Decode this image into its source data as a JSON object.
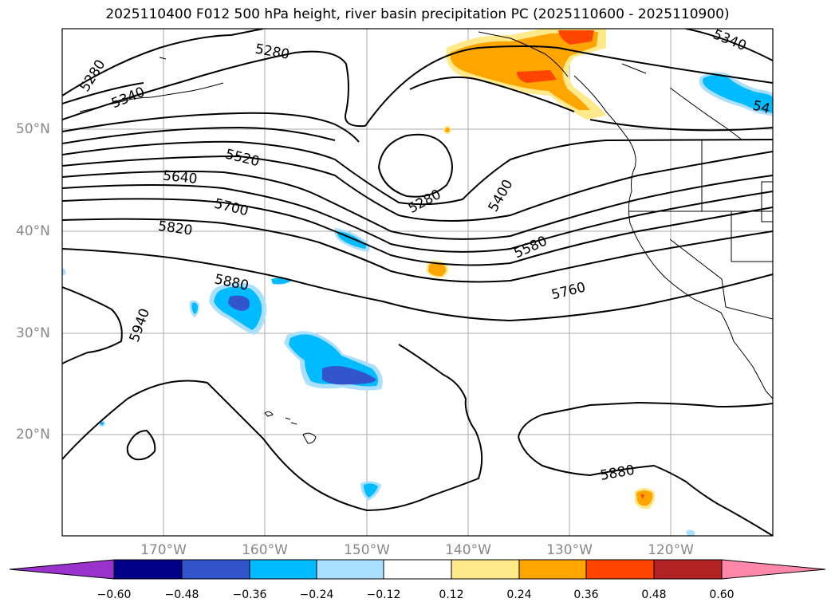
{
  "title": "2025110400 F012 500 hPa height, river basin precipitation PC (2025110600 - 2025110900)",
  "lat_labels": [
    "50°N",
    "40°N",
    "30°N",
    "20°N"
  ],
  "lon_labels": [
    "170°W",
    "160°W",
    "150°W",
    "140°W",
    "130°W",
    "120°W"
  ],
  "contour_labels": [
    "5280",
    "5280",
    "5340",
    "5340",
    "54",
    "5520",
    "5640",
    "5700",
    "5820",
    "5280",
    "5400",
    "5580",
    "5880",
    "5940",
    "5760",
    "5880"
  ],
  "colorbar": {
    "ticks": [
      "−0.60",
      "−0.48",
      "−0.36",
      "−0.24",
      "−0.12",
      "0.12",
      "0.24",
      "0.36",
      "0.48",
      "0.60"
    ],
    "colors": [
      "#9933cc",
      "#000088",
      "#3355cc",
      "#00bbff",
      "#aadfff",
      "#ffffff",
      "#ffe98a",
      "#ffa500",
      "#ff4500",
      "#b22222",
      "#ff88aa"
    ]
  },
  "colors": {
    "contour": "#000000",
    "grid": "#aaaaaa",
    "positive_light": "#ffe98a",
    "positive": "#ffa500",
    "positive_strong": "#ff4500",
    "negative_light": "#aadfff",
    "negative": "#00bbff",
    "negative_strong": "#3355cc"
  }
}
